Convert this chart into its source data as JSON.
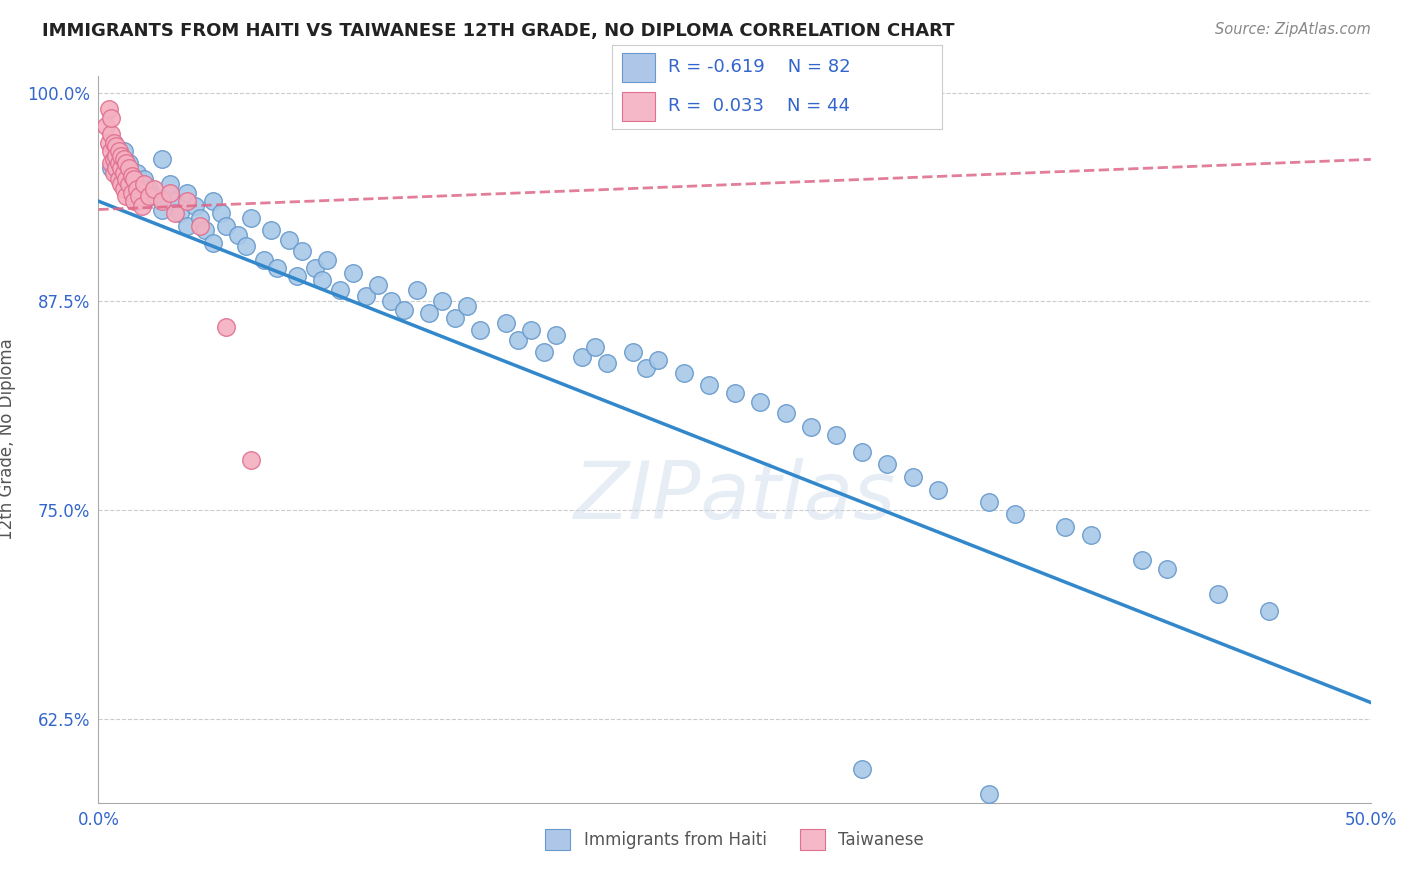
{
  "title": "IMMIGRANTS FROM HAITI VS TAIWANESE 12TH GRADE, NO DIPLOMA CORRELATION CHART",
  "source": "Source: ZipAtlas.com",
  "ylabel": "12th Grade, No Diploma",
  "watermark": "ZIPatlas",
  "xlim": [
    0.0,
    0.5
  ],
  "ylim": [
    0.575,
    1.01
  ],
  "xticks": [
    0.0,
    0.1,
    0.2,
    0.3,
    0.4,
    0.5
  ],
  "xtick_labels": [
    "0.0%",
    "",
    "",
    "",
    "",
    "50.0%"
  ],
  "yticks": [
    0.625,
    0.75,
    0.875,
    1.0
  ],
  "ytick_labels": [
    "62.5%",
    "75.0%",
    "87.5%",
    "100.0%"
  ],
  "haiti_color": "#a8c8e8",
  "haiti_edge": "#6699cc",
  "taiwanese_color": "#f4b0c0",
  "taiwanese_edge": "#e07090",
  "haiti_trend_color": "#3388cc",
  "taiwanese_trend_color": "#dd6688",
  "legend_haiti_color": "#aec6e8",
  "legend_taiwanese_color": "#f4b8c8",
  "haiti_R": -0.619,
  "haiti_N": 82,
  "taiwanese_R": 0.033,
  "taiwanese_N": 44,
  "haiti_scatter_x": [
    0.005,
    0.006,
    0.008,
    0.01,
    0.01,
    0.012,
    0.013,
    0.015,
    0.015,
    0.018,
    0.02,
    0.022,
    0.025,
    0.025,
    0.028,
    0.03,
    0.032,
    0.035,
    0.035,
    0.038,
    0.04,
    0.042,
    0.045,
    0.045,
    0.048,
    0.05,
    0.055,
    0.058,
    0.06,
    0.065,
    0.068,
    0.07,
    0.075,
    0.078,
    0.08,
    0.085,
    0.088,
    0.09,
    0.095,
    0.1,
    0.105,
    0.11,
    0.115,
    0.12,
    0.125,
    0.13,
    0.135,
    0.14,
    0.145,
    0.15,
    0.16,
    0.165,
    0.17,
    0.175,
    0.18,
    0.19,
    0.195,
    0.2,
    0.21,
    0.215,
    0.22,
    0.23,
    0.24,
    0.25,
    0.26,
    0.27,
    0.28,
    0.29,
    0.3,
    0.31,
    0.32,
    0.33,
    0.35,
    0.36,
    0.38,
    0.39,
    0.41,
    0.42,
    0.44,
    0.46,
    0.3,
    0.35
  ],
  "haiti_scatter_y": [
    0.955,
    0.96,
    0.95,
    0.945,
    0.965,
    0.958,
    0.94,
    0.952,
    0.935,
    0.948,
    0.942,
    0.938,
    0.96,
    0.93,
    0.945,
    0.935,
    0.928,
    0.94,
    0.92,
    0.932,
    0.925,
    0.918,
    0.935,
    0.91,
    0.928,
    0.92,
    0.915,
    0.908,
    0.925,
    0.9,
    0.918,
    0.895,
    0.912,
    0.89,
    0.905,
    0.895,
    0.888,
    0.9,
    0.882,
    0.892,
    0.878,
    0.885,
    0.875,
    0.87,
    0.882,
    0.868,
    0.875,
    0.865,
    0.872,
    0.858,
    0.862,
    0.852,
    0.858,
    0.845,
    0.855,
    0.842,
    0.848,
    0.838,
    0.845,
    0.835,
    0.84,
    0.832,
    0.825,
    0.82,
    0.815,
    0.808,
    0.8,
    0.795,
    0.785,
    0.778,
    0.77,
    0.762,
    0.755,
    0.748,
    0.74,
    0.735,
    0.72,
    0.715,
    0.7,
    0.69,
    0.595,
    0.58
  ],
  "taiwanese_scatter_x": [
    0.003,
    0.004,
    0.004,
    0.005,
    0.005,
    0.005,
    0.005,
    0.006,
    0.006,
    0.006,
    0.007,
    0.007,
    0.007,
    0.008,
    0.008,
    0.008,
    0.009,
    0.009,
    0.009,
    0.01,
    0.01,
    0.01,
    0.011,
    0.011,
    0.011,
    0.012,
    0.012,
    0.013,
    0.013,
    0.014,
    0.014,
    0.015,
    0.016,
    0.017,
    0.018,
    0.02,
    0.022,
    0.025,
    0.028,
    0.03,
    0.035,
    0.04,
    0.05,
    0.06
  ],
  "taiwanese_scatter_y": [
    0.98,
    0.97,
    0.99,
    0.965,
    0.975,
    0.958,
    0.985,
    0.96,
    0.97,
    0.952,
    0.968,
    0.955,
    0.962,
    0.958,
    0.948,
    0.965,
    0.955,
    0.962,
    0.945,
    0.952,
    0.96,
    0.942,
    0.958,
    0.948,
    0.938,
    0.955,
    0.945,
    0.95,
    0.94,
    0.948,
    0.935,
    0.942,
    0.938,
    0.932,
    0.945,
    0.938,
    0.942,
    0.935,
    0.94,
    0.928,
    0.935,
    0.92,
    0.86,
    0.78
  ],
  "haiti_trend_x": [
    0.0,
    0.5
  ],
  "haiti_trend_y": [
    0.935,
    0.635
  ],
  "taiwanese_trend_x": [
    0.0,
    0.5
  ],
  "taiwanese_trend_y": [
    0.93,
    0.96
  ]
}
